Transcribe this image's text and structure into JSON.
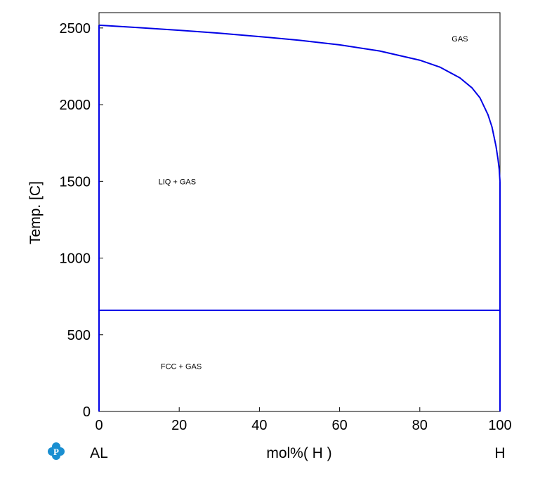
{
  "chart_data": {
    "type": "line",
    "title": "",
    "xlabel": "mol%(  H  )",
    "ylabel": "Temp.  [C]",
    "xlim": [
      0,
      100
    ],
    "ylim": [
      0,
      2600
    ],
    "xticks": [
      "0",
      "20",
      "40",
      "60",
      "80",
      "100"
    ],
    "yticks": [
      "0",
      "500",
      "1000",
      "1500",
      "2000",
      "2500"
    ],
    "grid": false,
    "legend": "none",
    "endpoint_labels": {
      "left": "AL",
      "right": "H"
    },
    "region_labels": [
      {
        "text": "GAS",
        "x": 90,
        "y": 2430
      },
      {
        "text": "LIQ + GAS",
        "x": 19.5,
        "y": 1500
      },
      {
        "text": "FCC + GAS",
        "x": 20.5,
        "y": 295
      }
    ],
    "series": [
      {
        "x": [
          0,
          5,
          10,
          20,
          30,
          40,
          50,
          60,
          70,
          80,
          85,
          90,
          93,
          95,
          97,
          98,
          99,
          99.5,
          99.8,
          100
        ],
        "y": [
          2518,
          2510,
          2502,
          2485,
          2466,
          2444,
          2420,
          2390,
          2350,
          2290,
          2245,
          2175,
          2110,
          2045,
          1935,
          1855,
          1730,
          1645,
          1580,
          1500
        ],
        "color": "#0000e6"
      },
      {
        "x": [
          0,
          100
        ],
        "y": [
          660,
          660
        ],
        "color": "#0000e6"
      },
      {
        "x": [
          0,
          0,
          0,
          0
        ],
        "y": [
          0,
          660,
          800,
          2518
        ],
        "color": "#0000e6"
      },
      {
        "x": [
          100,
          100
        ],
        "y": [
          0,
          1500
        ],
        "color": "#0000e6"
      }
    ],
    "colors": {
      "line": "#0000e6",
      "axis": "#000000",
      "logo": "#1a8fd1"
    }
  },
  "logo": {
    "name": "pandat-logo",
    "letter": "P"
  }
}
